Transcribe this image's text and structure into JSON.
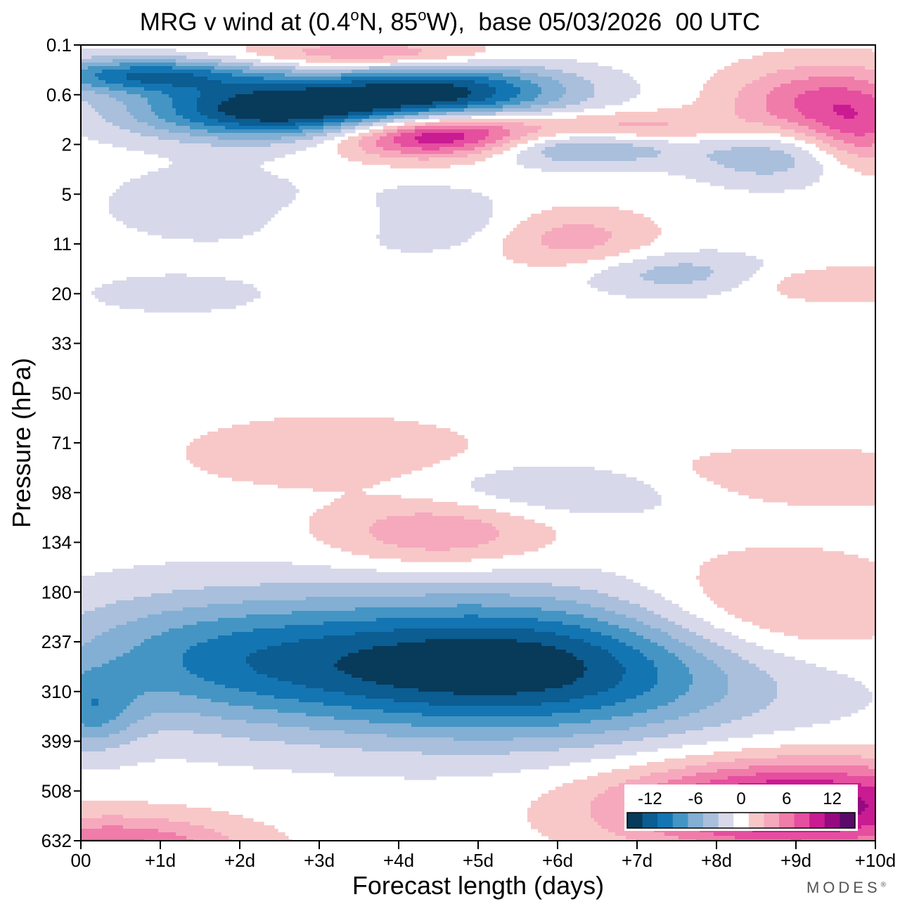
{
  "title": {
    "prefix": "MRG v wind at (0.4",
    "deg1": "o",
    "mid": "N, 85",
    "deg2": "o",
    "suffix": "W),  base 05/03/2026  00 UTC"
  },
  "brand": {
    "name": "MODES",
    "mark": "®"
  },
  "chart_data": {
    "type": "heatmap",
    "title": "MRG v wind at (0.4°N, 85°W),  base 05/03/2026  00 UTC",
    "xlabel": "Forecast length (days)",
    "ylabel": "Pressure (hPa)",
    "xlim": [
      0,
      10
    ],
    "x_tick_values": [
      0,
      1,
      2,
      3,
      4,
      5,
      6,
      7,
      8,
      9,
      10
    ],
    "x_tick_labels": [
      "00",
      "+1d",
      "+2d",
      "+3d",
      "+4d",
      "+5d",
      "+6d",
      "+7d",
      "+8d",
      "+9d",
      "+10d"
    ],
    "y_tick_labels": [
      "0.1",
      "0.6",
      "2",
      "5",
      "11",
      "20",
      "33",
      "50",
      "71",
      "98",
      "134",
      "180",
      "237",
      "310",
      "399",
      "508",
      "632"
    ],
    "y_axis_note": "levels drawn at equal spacing, 0.1 hPa at top",
    "colorbar": {
      "tick_values": [
        -12,
        -6,
        0,
        6,
        12
      ],
      "tick_labels": [
        "-12",
        "-6",
        "0",
        "6",
        "12"
      ],
      "bounds": [
        -15,
        -13,
        -11,
        -9,
        -7,
        -5,
        -3,
        -1,
        1,
        3,
        5,
        7,
        9,
        11,
        13,
        15
      ],
      "colors": [
        "#083a5a",
        "#0b5d92",
        "#1475b3",
        "#4495c4",
        "#82afd3",
        "#a9bfdc",
        "#d7d8ea",
        "#ffffff",
        "#f8c8c8",
        "#f6a9bd",
        "#f07caa",
        "#e64ea0",
        "#c91b92",
        "#950a80",
        "#5a0a6a"
      ]
    },
    "features": [
      {
        "name": "upper-tropo-negative",
        "day": 5.3,
        "level": 12.5,
        "day_spread": 3.2,
        "level_spread": 1.4,
        "value": -15
      },
      {
        "name": "upper-tropo-negative-west",
        "day": 1.5,
        "level": 12.3,
        "day_spread": 2.2,
        "level_spread": 1.3,
        "value": -6
      },
      {
        "name": "upper-tropo-negative-west-edge",
        "day": 0.1,
        "level": 13.4,
        "day_spread": 0.6,
        "level_spread": 0.8,
        "value": -6
      },
      {
        "name": "lower-positive-east",
        "day": 9.0,
        "level": 15.3,
        "day_spread": 2.2,
        "level_spread": 0.9,
        "value": 13
      },
      {
        "name": "lower-positive-west",
        "day": 0.4,
        "level": 16.2,
        "day_spread": 1.6,
        "level_spread": 0.7,
        "value": 8
      },
      {
        "name": "lower-positive-east-2",
        "day": 8.6,
        "level": 11.5,
        "day_spread": 1.8,
        "level_spread": 1.2,
        "value": 5
      },
      {
        "name": "mid-positive-1",
        "day": 4.5,
        "level": 9.8,
        "day_spread": 1.4,
        "level_spread": 0.7,
        "value": 5
      },
      {
        "name": "mid-positive-2",
        "day": 3.2,
        "level": 8.2,
        "day_spread": 1.8,
        "level_spread": 0.7,
        "value": 3
      },
      {
        "name": "mid-negative-1",
        "day": 6.2,
        "level": 8.9,
        "day_spread": 2.0,
        "level_spread": 0.6,
        "value": -4
      },
      {
        "name": "mid-positive-east",
        "day": 8.5,
        "level": 8.7,
        "day_spread": 2.6,
        "level_spread": 0.6,
        "value": 3
      },
      {
        "name": "strat-negative-1",
        "day": 2.5,
        "level": 1.3,
        "day_spread": 1.8,
        "level_spread": 0.6,
        "value": -15
      },
      {
        "name": "strat-negative-2",
        "day": 4.6,
        "level": 0.95,
        "day_spread": 1.6,
        "level_spread": 0.6,
        "value": -12
      },
      {
        "name": "strat-negative-3",
        "day": 0.8,
        "level": 0.6,
        "day_spread": 1.4,
        "level_spread": 0.35,
        "value": -10
      },
      {
        "name": "strat-positive-1",
        "day": 4.5,
        "level": 1.8,
        "day_spread": 1.3,
        "level_spread": 0.45,
        "value": 14
      },
      {
        "name": "strat-positive-2",
        "day": 9.4,
        "level": 1.2,
        "day_spread": 1.2,
        "level_spread": 0.8,
        "value": 8
      },
      {
        "name": "strat-positive-3",
        "day": 3.7,
        "level": 0.2,
        "day_spread": 1.6,
        "level_spread": 0.3,
        "value": 6
      },
      {
        "name": "strat-positive-4",
        "day": 6.7,
        "level": 1.7,
        "day_spread": 1.4,
        "level_spread": 0.35,
        "value": 6
      },
      {
        "name": "strat-negative-4",
        "day": 6.2,
        "level": 2.0,
        "day_spread": 1.3,
        "level_spread": 0.4,
        "value": -8
      },
      {
        "name": "strat-negative-5",
        "day": 8.7,
        "level": 2.2,
        "day_spread": 1.0,
        "level_spread": 0.6,
        "value": -5
      },
      {
        "name": "strat-negative-6",
        "day": 4.2,
        "level": 3.5,
        "day_spread": 1.1,
        "level_spread": 0.6,
        "value": -4
      },
      {
        "name": "strat-negative-7",
        "day": 7.5,
        "level": 4.6,
        "day_spread": 1.2,
        "level_spread": 0.45,
        "value": -4
      },
      {
        "name": "strat-positive-5",
        "day": 6.2,
        "level": 3.9,
        "day_spread": 1.0,
        "level_spread": 0.6,
        "value": 4
      },
      {
        "name": "strat-positive-6",
        "day": 9.8,
        "level": 1.9,
        "day_spread": 0.6,
        "level_spread": 0.7,
        "value": 4
      },
      {
        "name": "strat-positive-7",
        "day": 3.4,
        "level": 3.5,
        "day_spread": 0.9,
        "level_spread": 0.45,
        "value": 3
      },
      {
        "name": "strat-negative-8",
        "day": 1.6,
        "level": 3.2,
        "day_spread": 1.2,
        "level_spread": 0.7,
        "value": -3
      },
      {
        "name": "strat-negative-9",
        "day": 1.2,
        "level": 5.0,
        "day_spread": 1.0,
        "level_spread": 0.35,
        "value": -3
      },
      {
        "name": "strat-positive-8",
        "day": 9.5,
        "level": 4.8,
        "day_spread": 1.2,
        "level_spread": 0.35,
        "value": 3
      }
    ]
  }
}
